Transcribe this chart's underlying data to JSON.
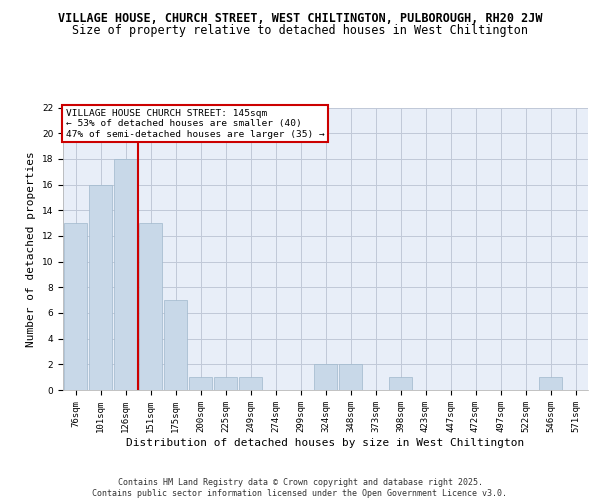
{
  "title": "VILLAGE HOUSE, CHURCH STREET, WEST CHILTINGTON, PULBOROUGH, RH20 2JW",
  "subtitle": "Size of property relative to detached houses in West Chiltington",
  "xlabel": "Distribution of detached houses by size in West Chiltington",
  "ylabel": "Number of detached properties",
  "categories": [
    "76sqm",
    "101sqm",
    "126sqm",
    "151sqm",
    "175sqm",
    "200sqm",
    "225sqm",
    "249sqm",
    "274sqm",
    "299sqm",
    "324sqm",
    "348sqm",
    "373sqm",
    "398sqm",
    "423sqm",
    "447sqm",
    "472sqm",
    "497sqm",
    "522sqm",
    "546sqm",
    "571sqm"
  ],
  "values": [
    13,
    16,
    18,
    13,
    7,
    1,
    1,
    1,
    0,
    0,
    2,
    2,
    0,
    1,
    0,
    0,
    0,
    0,
    0,
    1,
    0
  ],
  "ylim": [
    0,
    22
  ],
  "yticks": [
    0,
    2,
    4,
    6,
    8,
    10,
    12,
    14,
    16,
    18,
    20,
    22
  ],
  "bar_color": "#c8d8e8",
  "bar_edge_color": "#a0b8cc",
  "grid_color": "#c0c8d8",
  "bg_color": "#e8eef8",
  "annotation_box_text": "VILLAGE HOUSE CHURCH STREET: 145sqm\n← 53% of detached houses are smaller (40)\n47% of semi-detached houses are larger (35) →",
  "annotation_box_color": "#ffffff",
  "annotation_box_edge": "#cc0000",
  "red_line_x": 2.5,
  "footer": "Contains HM Land Registry data © Crown copyright and database right 2025.\nContains public sector information licensed under the Open Government Licence v3.0.",
  "title_fontsize": 8.5,
  "subtitle_fontsize": 8.5,
  "xlabel_fontsize": 8,
  "ylabel_fontsize": 8,
  "tick_fontsize": 6.5,
  "footer_fontsize": 6.0,
  "ann_fontsize": 6.8
}
